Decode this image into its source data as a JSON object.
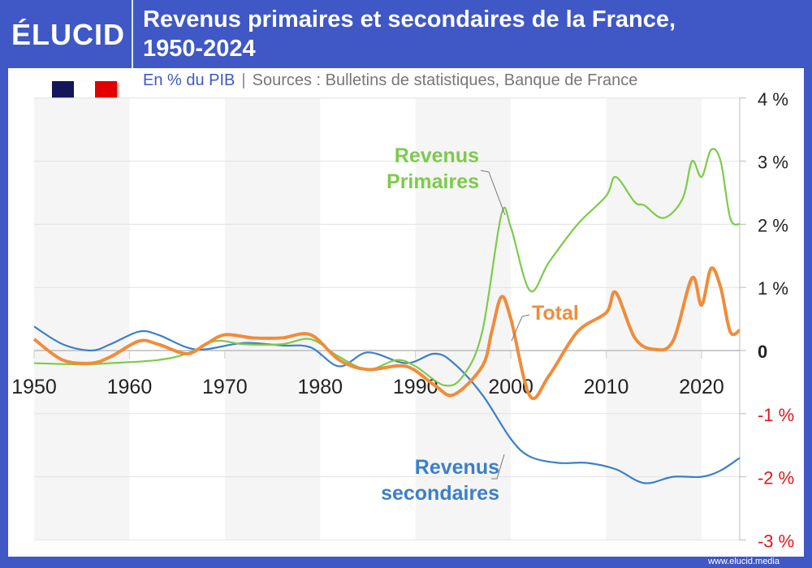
{
  "header": {
    "logo": "ÉLUCID",
    "title_line1": "Revenus primaires et secondaires de la France,",
    "title_line2": "1950-2024"
  },
  "subtitle": {
    "unit": "En % du PIB",
    "separator": "|",
    "sources": "Sources : Bulletins de statistiques, Banque de France"
  },
  "flag": {
    "colors": [
      "#15155a",
      "#ffffff",
      "#e10000"
    ]
  },
  "footer": {
    "url": "www.elucid.media"
  },
  "chart_data": {
    "type": "line",
    "xlim": [
      1950,
      2024
    ],
    "ylim": [
      -3,
      4
    ],
    "x_ticks": [
      1950,
      1960,
      1970,
      1980,
      1990,
      2000,
      2010,
      2020
    ],
    "y_ticks": [
      {
        "v": 4,
        "label": "4 %"
      },
      {
        "v": 3,
        "label": "3 %"
      },
      {
        "v": 2,
        "label": "2 %"
      },
      {
        "v": 1,
        "label": "1 %"
      },
      {
        "v": 0,
        "label": "0"
      },
      {
        "v": -1,
        "label": "-1 %"
      },
      {
        "v": -2,
        "label": "-2 %"
      },
      {
        "v": -3,
        "label": "-3 %"
      }
    ],
    "grid": true,
    "axis_position": "right",
    "negative_label_color": "#e0161b",
    "series": [
      {
        "name": "Revenus Primaires",
        "label_lines": [
          "Revenus",
          "Primaires"
        ],
        "color": "#7ccb4a",
        "points": [
          [
            1950,
            -0.2
          ],
          [
            1955,
            -0.22
          ],
          [
            1958,
            -0.2
          ],
          [
            1963,
            -0.15
          ],
          [
            1966,
            -0.05
          ],
          [
            1969,
            0.15
          ],
          [
            1972,
            0.1
          ],
          [
            1976,
            0.1
          ],
          [
            1979,
            0.18
          ],
          [
            1982,
            -0.1
          ],
          [
            1985,
            -0.3
          ],
          [
            1988,
            -0.15
          ],
          [
            1990,
            -0.25
          ],
          [
            1993,
            -0.55
          ],
          [
            1995,
            -0.4
          ],
          [
            1997,
            0.3
          ],
          [
            1999,
            2.15
          ],
          [
            2000,
            1.95
          ],
          [
            2002,
            0.95
          ],
          [
            2004,
            1.4
          ],
          [
            2007,
            2.0
          ],
          [
            2010,
            2.45
          ],
          [
            2011,
            2.75
          ],
          [
            2013,
            2.35
          ],
          [
            2014,
            2.3
          ],
          [
            2016,
            2.1
          ],
          [
            2018,
            2.4
          ],
          [
            2019,
            3.0
          ],
          [
            2020,
            2.75
          ],
          [
            2021,
            3.18
          ],
          [
            2022,
            3.0
          ],
          [
            2023,
            2.1
          ],
          [
            2024,
            2.0
          ]
        ]
      },
      {
        "name": "Total",
        "label_lines": [
          "Total"
        ],
        "color": "#f08c3a",
        "points": [
          [
            1950,
            0.18
          ],
          [
            1953,
            -0.15
          ],
          [
            1956,
            -0.2
          ],
          [
            1958,
            -0.1
          ],
          [
            1961,
            0.15
          ],
          [
            1963,
            0.1
          ],
          [
            1966,
            -0.05
          ],
          [
            1968,
            0.1
          ],
          [
            1970,
            0.25
          ],
          [
            1973,
            0.2
          ],
          [
            1976,
            0.2
          ],
          [
            1979,
            0.25
          ],
          [
            1982,
            -0.15
          ],
          [
            1985,
            -0.3
          ],
          [
            1989,
            -0.25
          ],
          [
            1992,
            -0.55
          ],
          [
            1994,
            -0.7
          ],
          [
            1997,
            -0.25
          ],
          [
            1998,
            0.3
          ],
          [
            1999,
            0.85
          ],
          [
            2000,
            0.5
          ],
          [
            2002,
            -0.72
          ],
          [
            2004,
            -0.4
          ],
          [
            2007,
            0.3
          ],
          [
            2010,
            0.6
          ],
          [
            2011,
            0.92
          ],
          [
            2013,
            0.2
          ],
          [
            2015,
            0.02
          ],
          [
            2017,
            0.15
          ],
          [
            2019,
            1.15
          ],
          [
            2020,
            0.72
          ],
          [
            2021,
            1.3
          ],
          [
            2022,
            1.0
          ],
          [
            2023,
            0.3
          ],
          [
            2024,
            0.32
          ]
        ]
      },
      {
        "name": "Revenus secondaires",
        "label_lines": [
          "Revenus",
          "secondaires"
        ],
        "color": "#3b7fc9",
        "points": [
          [
            1950,
            0.38
          ],
          [
            1953,
            0.1
          ],
          [
            1956,
            0.0
          ],
          [
            1958,
            0.1
          ],
          [
            1961,
            0.3
          ],
          [
            1963,
            0.25
          ],
          [
            1966,
            0.05
          ],
          [
            1968,
            0.02
          ],
          [
            1972,
            0.12
          ],
          [
            1976,
            0.08
          ],
          [
            1979,
            0.05
          ],
          [
            1982,
            -0.25
          ],
          [
            1985,
            -0.03
          ],
          [
            1989,
            -0.2
          ],
          [
            1992,
            -0.05
          ],
          [
            1994,
            -0.2
          ],
          [
            1997,
            -0.7
          ],
          [
            2000,
            -1.4
          ],
          [
            2002,
            -1.68
          ],
          [
            2005,
            -1.78
          ],
          [
            2008,
            -1.78
          ],
          [
            2011,
            -1.88
          ],
          [
            2014,
            -2.1
          ],
          [
            2017,
            -2.0
          ],
          [
            2020,
            -2.0
          ],
          [
            2022,
            -1.9
          ],
          [
            2024,
            -1.7
          ]
        ]
      }
    ]
  }
}
